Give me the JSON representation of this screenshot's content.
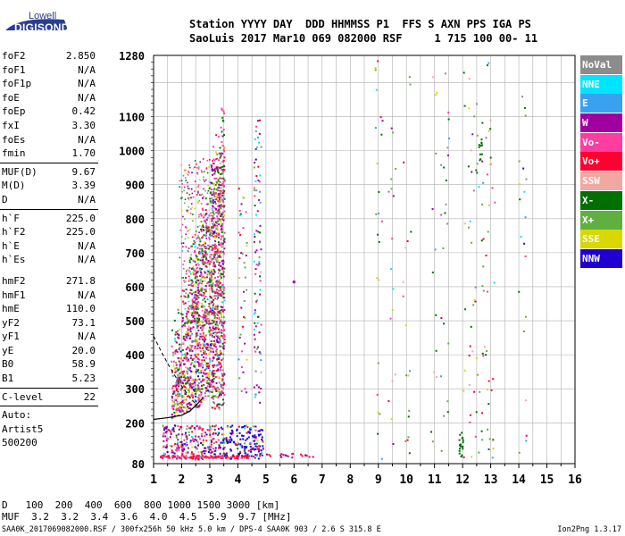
{
  "logo": {
    "line1": "Lowell",
    "line2": "DIGISONDE"
  },
  "header": {
    "line1": "Station YYYY DAY  DDD HHMMSS P1  FFS S AXN PPS IGA PS",
    "line2": "SaoLuis 2017 Mar10 069 082000 RSF     1 715 100 00- 11"
  },
  "params": [
    [
      {
        "name": "foF2",
        "value": "2.850"
      },
      {
        "name": "foF1",
        "value": "N/A"
      },
      {
        "name": "foF1p",
        "value": "N/A"
      },
      {
        "name": "foE",
        "value": "N/A"
      },
      {
        "name": "foEp",
        "value": "0.42"
      },
      {
        "name": "fxI",
        "value": "3.30"
      },
      {
        "name": "foEs",
        "value": "N/A"
      },
      {
        "name": "fmin",
        "value": "1.70"
      }
    ],
    [
      {
        "name": "MUF(D)",
        "value": "9.67"
      },
      {
        "name": "M(D)",
        "value": "3.39"
      },
      {
        "name": "D",
        "value": "N/A"
      }
    ],
    [
      {
        "name": "h`F",
        "value": "225.0"
      },
      {
        "name": "h`F2",
        "value": "225.0"
      },
      {
        "name": "h`E",
        "value": "N/A"
      },
      {
        "name": "h`Es",
        "value": "N/A"
      }
    ],
    [
      {
        "name": "hmF2",
        "value": "271.8"
      },
      {
        "name": "hmF1",
        "value": "N/A"
      },
      {
        "name": "hmE",
        "value": "110.0"
      },
      {
        "name": "yF2",
        "value": "73.1"
      },
      {
        "name": "yF1",
        "value": "N/A"
      },
      {
        "name": "yE",
        "value": "20.0"
      },
      {
        "name": "B0",
        "value": "58.9"
      },
      {
        "name": "B1",
        "value": "5.23"
      }
    ],
    [
      {
        "name": "C-level",
        "value": "22"
      }
    ]
  ],
  "autoscaler": {
    "line1": "Auto:",
    "line2": "Artist5",
    "line3": "500200"
  },
  "legend": [
    {
      "label": "NoVal",
      "color": "#8c8c8c"
    },
    {
      "label": "NNE",
      "color": "#00e5ff"
    },
    {
      "label": "E",
      "color": "#3aa0f0"
    },
    {
      "label": "W",
      "color": "#a000a0"
    },
    {
      "label": "Vo-",
      "color": "#ff3ca0"
    },
    {
      "label": "Vo+",
      "color": "#ff0030"
    },
    {
      "label": "SSW",
      "color": "#f0a8a0"
    },
    {
      "label": "X-",
      "color": "#007000"
    },
    {
      "label": "X+",
      "color": "#60b040"
    },
    {
      "label": "SSE",
      "color": "#d8d800"
    },
    {
      "label": "NNW",
      "color": "#2000d0"
    }
  ],
  "chart_data": {
    "type": "scatter",
    "xlim": [
      1,
      16
    ],
    "ylim": [
      80,
      1280
    ],
    "x_ticks": [
      "1",
      "2",
      "3",
      "4",
      "5",
      "6",
      "7",
      "8",
      "9",
      "10",
      "11",
      "12",
      "13",
      "14",
      "15",
      "16"
    ],
    "y_ticks": [
      "80",
      "200",
      "300",
      "400",
      "500",
      "600",
      "700",
      "800",
      "900",
      "1000",
      "1100",
      "1280"
    ],
    "grid": true,
    "trace_h_virtual": {
      "x": [
        1.0,
        1.5,
        2.0,
        2.3,
        2.55,
        2.75
      ],
      "y": [
        210,
        215,
        222,
        235,
        255,
        272
      ]
    },
    "extraordinary_dash": {
      "x": [
        1.0,
        1.3,
        1.6,
        1.9,
        2.2,
        2.55
      ],
      "y": [
        455,
        405,
        360,
        320,
        285,
        250
      ]
    }
  },
  "footer": {
    "d_label": "D",
    "d_values": "100  200  400  600  800 1000 1500 3000 [km]",
    "muf_label": "MUF",
    "muf_values": "3.2  3.2  3.4  3.6  4.0  4.5  5.9  9.7 [MHz]",
    "file_line": "SAA0K_2017069082000.RSF / 300fx256h 50 kHz 5.0 km / DPS-4 SAA0K 903 / 2.6 S 315.8 E",
    "version": "Ion2Png 1.3.17"
  }
}
